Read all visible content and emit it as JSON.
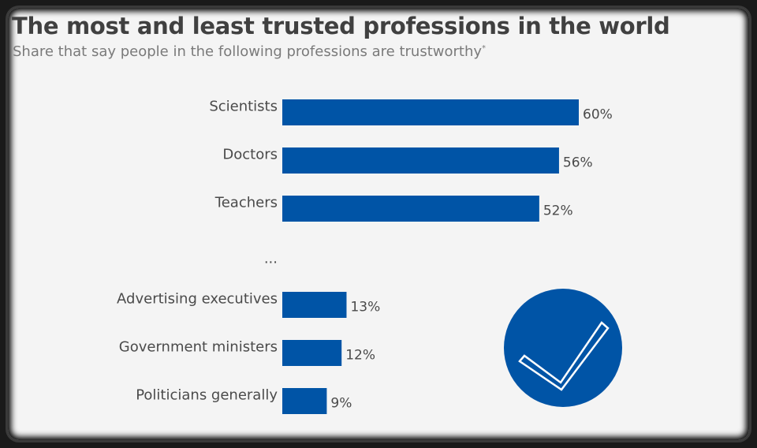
{
  "chart_data": {
    "type": "bar",
    "orientation": "horizontal",
    "title": "The most and least trusted professions in the world",
    "subtitle": "Share that say people in the following professions are trustworthy",
    "subtitle_mark": "*",
    "categories": [
      "Scientists",
      "Doctors",
      "Teachers",
      "...",
      "Advertising executives",
      "Government ministers",
      "Politicians generally"
    ],
    "values": [
      60,
      56,
      52,
      null,
      13,
      12,
      9
    ],
    "value_labels": [
      "60%",
      "56%",
      "52%",
      "",
      "13%",
      "12%",
      "9%"
    ],
    "unit": "%",
    "xlim": [
      0,
      60
    ],
    "grid": false,
    "legend": "none",
    "bar_color": "#0054a6"
  },
  "badge": {
    "icon": "checkmark-icon",
    "color": "#0054a6"
  }
}
